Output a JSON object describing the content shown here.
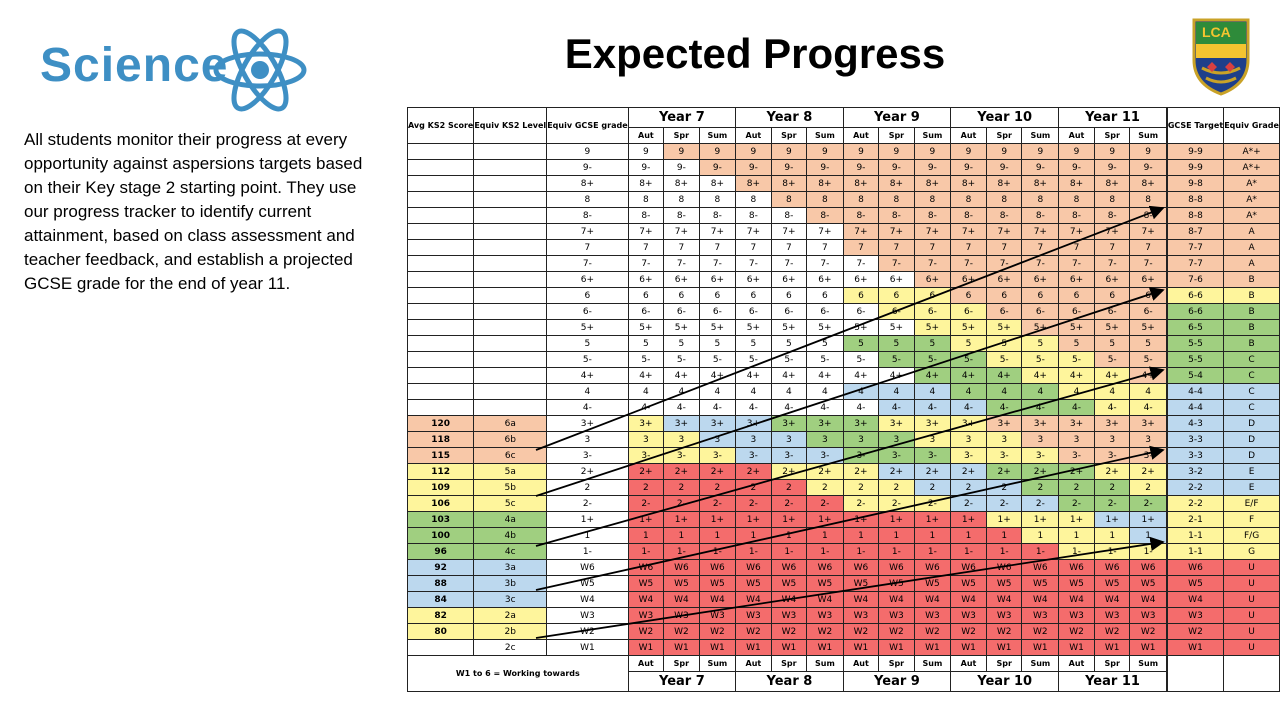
{
  "header": {
    "logo_text": "Science",
    "title": "Expected Progress",
    "intro": "All students monitor their progress at every opportunity against aspersions targets based on their Key stage 2 starting point. They use our progress tracker to identify current attainment, based on class assessment and teacher feedback, and establish a projected GCSE grade for the end of year 11.",
    "crest_text": "LCA"
  },
  "table": {
    "headers": {
      "avg": "Avg KS2 Score",
      "equiv_ks2": "Equiv KS2 Level",
      "equiv_gcse": "Equiv GCSE grade",
      "target": "GCSE Target",
      "equiv_grade": "Equiv Grade"
    },
    "years": [
      "Year 7",
      "Year 8",
      "Year 9",
      "Year 10",
      "Year 11"
    ],
    "terms": [
      "Aut",
      "Spr",
      "Sum"
    ],
    "footer_note": "W1 to 6 = Working towards",
    "rows": [
      {
        "ks2": "",
        "lvl": "",
        "g": "9",
        "tg": "9-9",
        "eq": "A*+"
      },
      {
        "ks2": "",
        "lvl": "",
        "g": "9-",
        "tg": "9-9",
        "eq": "A*+"
      },
      {
        "ks2": "",
        "lvl": "",
        "g": "8+",
        "tg": "9-8",
        "eq": "A*"
      },
      {
        "ks2": "",
        "lvl": "",
        "g": "8",
        "tg": "8-8",
        "eq": "A*"
      },
      {
        "ks2": "",
        "lvl": "",
        "g": "8-",
        "tg": "8-8",
        "eq": "A*"
      },
      {
        "ks2": "",
        "lvl": "",
        "g": "7+",
        "tg": "8-7",
        "eq": "A"
      },
      {
        "ks2": "",
        "lvl": "",
        "g": "7",
        "tg": "7-7",
        "eq": "A"
      },
      {
        "ks2": "",
        "lvl": "",
        "g": "7-",
        "tg": "7-7",
        "eq": "A"
      },
      {
        "ks2": "",
        "lvl": "",
        "g": "6+",
        "tg": "7-6",
        "eq": "B"
      },
      {
        "ks2": "",
        "lvl": "",
        "g": "6",
        "tg": "6-6",
        "eq": "B"
      },
      {
        "ks2": "",
        "lvl": "",
        "g": "6-",
        "tg": "6-6",
        "eq": "B"
      },
      {
        "ks2": "",
        "lvl": "",
        "g": "5+",
        "tg": "6-5",
        "eq": "B"
      },
      {
        "ks2": "",
        "lvl": "",
        "g": "5",
        "tg": "5-5",
        "eq": "B"
      },
      {
        "ks2": "",
        "lvl": "",
        "g": "5-",
        "tg": "5-5",
        "eq": "C"
      },
      {
        "ks2": "",
        "lvl": "",
        "g": "4+",
        "tg": "5-4",
        "eq": "C"
      },
      {
        "ks2": "",
        "lvl": "",
        "g": "4",
        "tg": "4-4",
        "eq": "C"
      },
      {
        "ks2": "",
        "lvl": "",
        "g": "4-",
        "tg": "4-4",
        "eq": "C"
      },
      {
        "ks2": "120",
        "lvl": "6a",
        "g": "3+",
        "tg": "4-3",
        "eq": "D"
      },
      {
        "ks2": "118",
        "lvl": "6b",
        "g": "3",
        "tg": "3-3",
        "eq": "D"
      },
      {
        "ks2": "115",
        "lvl": "6c",
        "g": "3-",
        "tg": "3-3",
        "eq": "D"
      },
      {
        "ks2": "112",
        "lvl": "5a",
        "g": "2+",
        "tg": "3-2",
        "eq": "E"
      },
      {
        "ks2": "109",
        "lvl": "5b",
        "g": "2",
        "tg": "2-2",
        "eq": "E"
      },
      {
        "ks2": "106",
        "lvl": "5c",
        "g": "2-",
        "tg": "2-2",
        "eq": "E/F"
      },
      {
        "ks2": "103",
        "lvl": "4a",
        "g": "1+",
        "tg": "2-1",
        "eq": "F"
      },
      {
        "ks2": "100",
        "lvl": "4b",
        "g": "1",
        "tg": "1-1",
        "eq": "F/G"
      },
      {
        "ks2": "96",
        "lvl": "4c",
        "g": "1-",
        "tg": "1-1",
        "eq": "G"
      },
      {
        "ks2": "92",
        "lvl": "3a",
        "g": "W6",
        "tg": "W6",
        "eq": "U"
      },
      {
        "ks2": "88",
        "lvl": "3b",
        "g": "W5",
        "tg": "W5",
        "eq": "U"
      },
      {
        "ks2": "84",
        "lvl": "3c",
        "g": "W4",
        "tg": "W4",
        "eq": "U"
      },
      {
        "ks2": "82",
        "lvl": "2a",
        "g": "W3",
        "tg": "W3",
        "eq": "U"
      },
      {
        "ks2": "80",
        "lvl": "2b",
        "g": "W2",
        "tg": "W2",
        "eq": "U"
      },
      {
        "ks2": "",
        "lvl": "2c",
        "g": "W1",
        "tg": "W1",
        "eq": "U"
      }
    ]
  },
  "colors": {
    "red": "#f46c6c",
    "yellow": "#fef59c",
    "blue": "#bcd8ee",
    "green": "#a0cf80",
    "orange": "#f8c8a8",
    "white": "#ffffff",
    "logo_blue": "#3e8fc4"
  }
}
